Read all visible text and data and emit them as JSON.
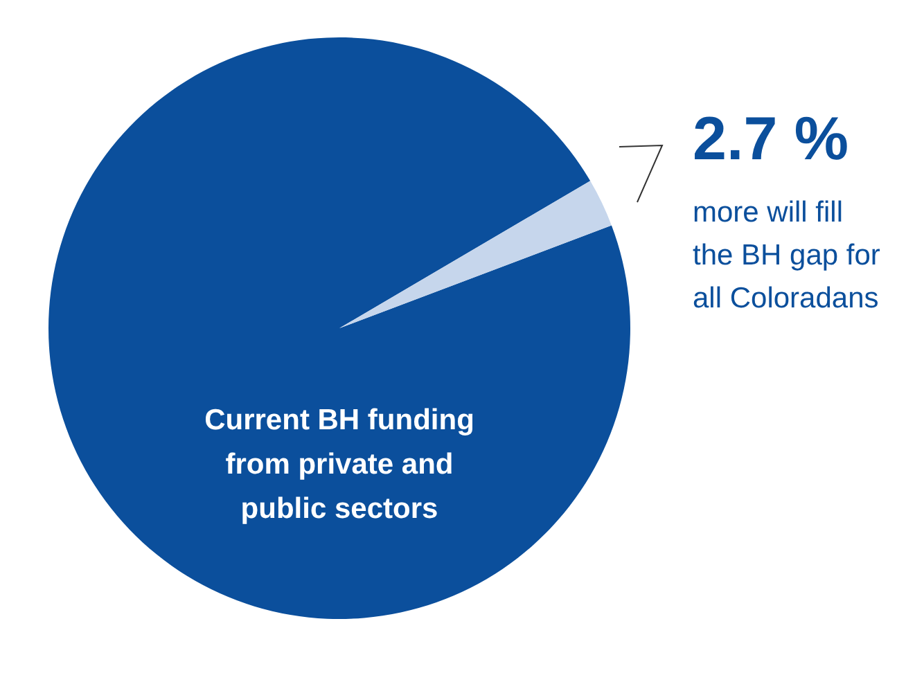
{
  "chart_data": {
    "type": "pie",
    "categories": [
      "Current BH funding from private and public sectors",
      "more will fill the BH gap for all Coloradans"
    ],
    "values": [
      97.3,
      2.7
    ],
    "colors": [
      "#0b4f9c",
      "#c6d6ec"
    ],
    "value_labels": [
      null,
      "2.7 %"
    ]
  }
}
